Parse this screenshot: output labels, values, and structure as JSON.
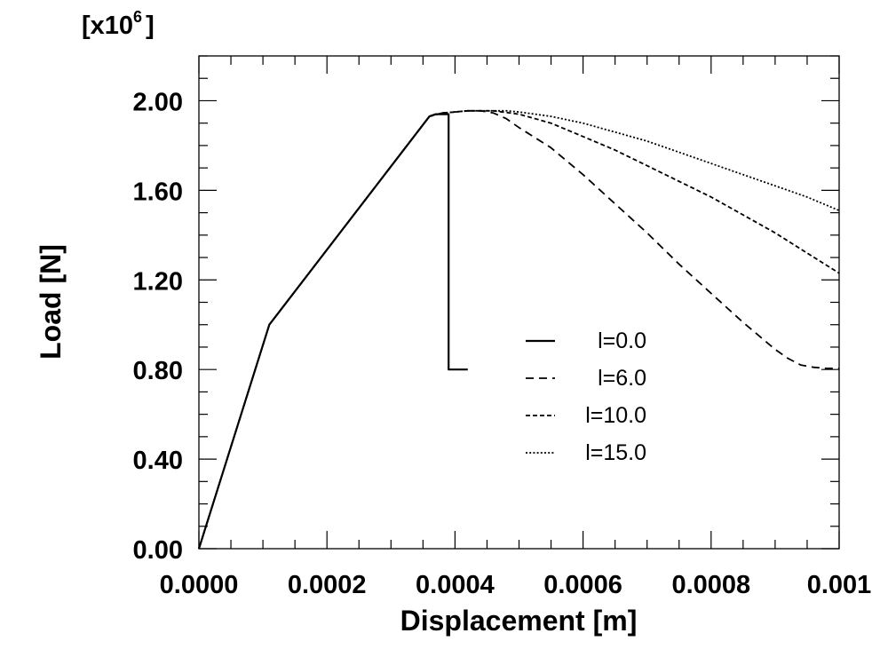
{
  "chart_data": {
    "type": "line",
    "xlabel": "Displacement [m]",
    "ylabel": "Load [N]",
    "y_multiplier": {
      "base": "[x10",
      "exp": "6",
      "close": "]"
    },
    "xlim": [
      0,
      0.001
    ],
    "ylim": [
      0,
      2.2
    ],
    "x_ticks": [
      0,
      0.0002,
      0.0004,
      0.0006,
      0.0008,
      0.001
    ],
    "x_tick_labels": [
      "0.0000",
      "0.0002",
      "0.0004",
      "0.0006",
      "0.0008",
      "0.001"
    ],
    "y_ticks": [
      0,
      0.4,
      0.8,
      1.2,
      1.6,
      2.0
    ],
    "y_tick_labels": [
      "0.00",
      "0.40",
      "0.80",
      "1.20",
      "1.60",
      "2.00"
    ],
    "grid": false,
    "legend_position": "center-right",
    "series": [
      {
        "name": "l=0.0",
        "style": "solid",
        "x": [
          0,
          0.00011,
          0.00036,
          0.00037,
          0.00039,
          0.00039,
          0.0004,
          0.00042
        ],
        "y": [
          0,
          1.0,
          1.93,
          1.94,
          1.94,
          0.8,
          0.8,
          0.8
        ]
      },
      {
        "name": "l=6.0",
        "style": "dashed",
        "x": [
          0,
          0.00011,
          0.00036,
          0.00038,
          0.0004,
          0.00042,
          0.00044,
          0.00046,
          0.00048,
          0.0005,
          0.00055,
          0.0006,
          0.00065,
          0.0007,
          0.00075,
          0.0008,
          0.00085,
          0.0009,
          0.00092,
          0.00094,
          0.00096,
          0.00098,
          0.001
        ],
        "y": [
          0,
          1.0,
          1.93,
          1.945,
          1.95,
          1.955,
          1.955,
          1.945,
          1.92,
          1.88,
          1.79,
          1.67,
          1.54,
          1.41,
          1.27,
          1.14,
          1.01,
          0.89,
          0.85,
          0.82,
          0.81,
          0.805,
          0.805
        ]
      },
      {
        "name": "l=10.0",
        "style": "short-dash",
        "x": [
          0,
          0.00011,
          0.00036,
          0.00038,
          0.0004,
          0.00042,
          0.00044,
          0.00046,
          0.0005,
          0.00055,
          0.0006,
          0.00065,
          0.0007,
          0.00075,
          0.0008,
          0.00085,
          0.0009,
          0.00095,
          0.001
        ],
        "y": [
          0,
          1.0,
          1.93,
          1.945,
          1.95,
          1.955,
          1.955,
          1.955,
          1.94,
          1.9,
          1.84,
          1.78,
          1.71,
          1.64,
          1.57,
          1.49,
          1.41,
          1.32,
          1.23
        ]
      },
      {
        "name": "l=15.0",
        "style": "dotted",
        "x": [
          0,
          0.00011,
          0.00036,
          0.00038,
          0.0004,
          0.00042,
          0.00044,
          0.00046,
          0.00048,
          0.0005,
          0.00055,
          0.0006,
          0.00065,
          0.0007,
          0.00075,
          0.0008,
          0.00085,
          0.0009,
          0.00095,
          0.001
        ],
        "y": [
          0,
          1.0,
          1.93,
          1.945,
          1.95,
          1.955,
          1.955,
          1.955,
          1.955,
          1.95,
          1.93,
          1.9,
          1.86,
          1.82,
          1.77,
          1.72,
          1.67,
          1.62,
          1.57,
          1.51
        ]
      }
    ]
  }
}
